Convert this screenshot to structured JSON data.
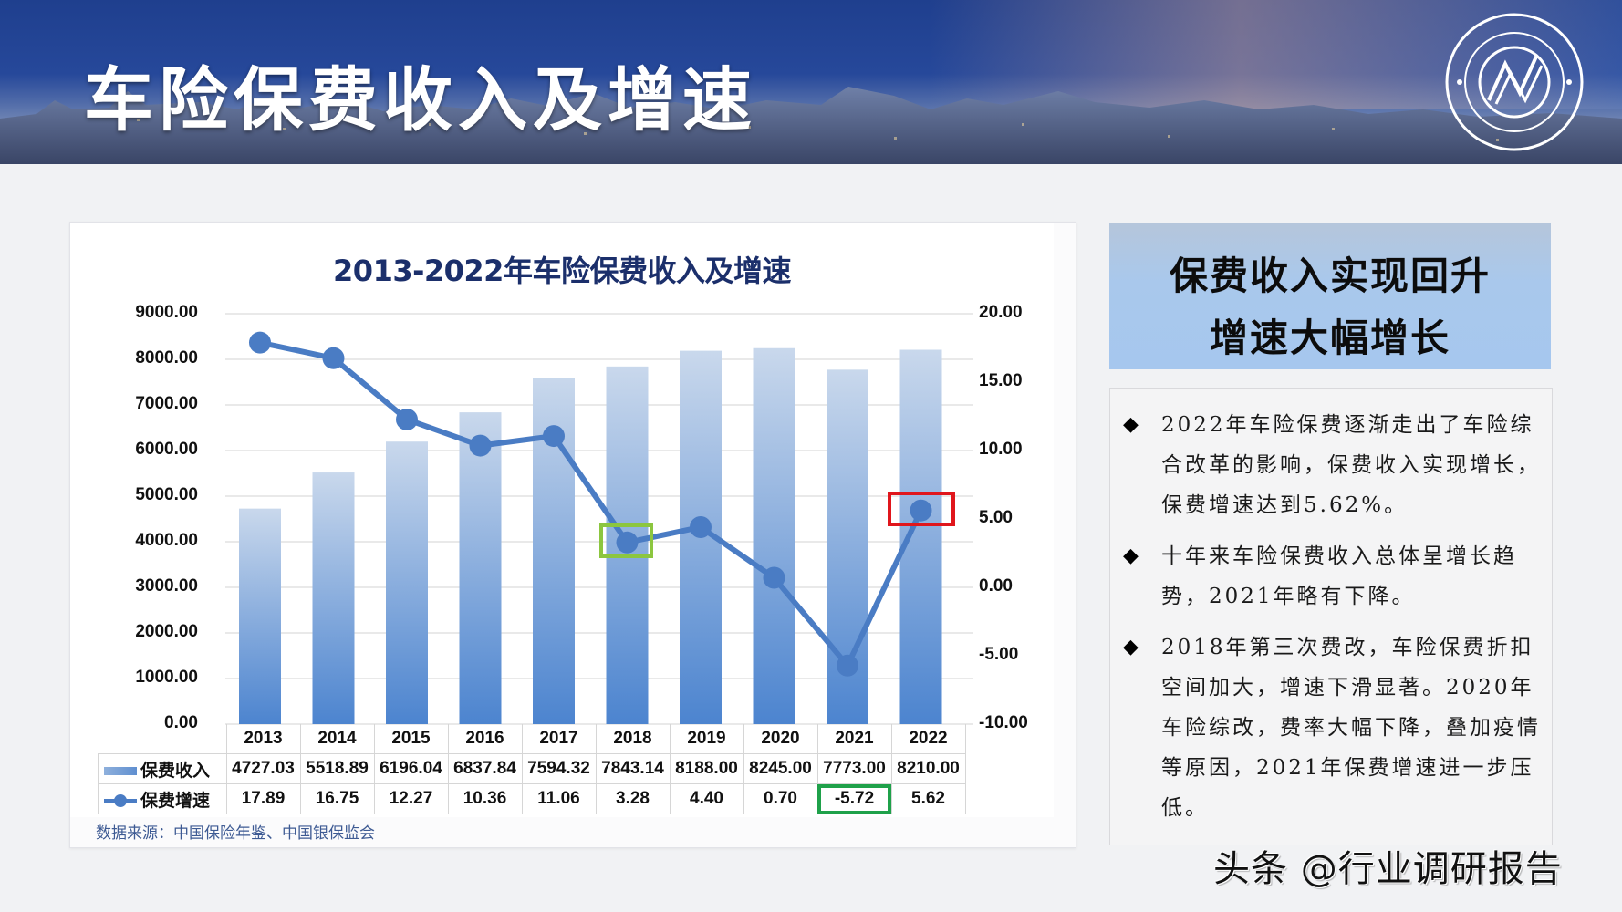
{
  "banner": {
    "title": "车险保费收入及增速",
    "logo": "research-center-seal-logo"
  },
  "chart_data": {
    "type": "bar",
    "combo": "bar+line (dual axis)",
    "title": "2013-2022年车险保费收入及增速",
    "categories": [
      "2013",
      "2014",
      "2015",
      "2016",
      "2017",
      "2018",
      "2019",
      "2020",
      "2021",
      "2022"
    ],
    "series": [
      {
        "name": "保费收入",
        "type": "bar",
        "axis": "left",
        "values": [
          4727.03,
          5518.89,
          6196.04,
          6837.84,
          7594.32,
          7843.14,
          8188.0,
          8245.0,
          7773.0,
          8210.0
        ],
        "labels": [
          "4727.03",
          "5518.89",
          "6196.04",
          "6837.84",
          "7594.32",
          "7843.14",
          "8188.00",
          "8245.00",
          "7773.00",
          "8210.00"
        ]
      },
      {
        "name": "保费增速",
        "type": "line",
        "axis": "right",
        "values": [
          17.89,
          16.75,
          12.27,
          10.36,
          11.06,
          3.28,
          4.4,
          0.7,
          -5.72,
          5.62
        ],
        "labels": [
          "17.89",
          "16.75",
          "12.27",
          "10.36",
          "11.06",
          "3.28",
          "4.40",
          "0.70",
          "-5.72",
          "5.62"
        ]
      }
    ],
    "left_axis": {
      "ylim": [
        0,
        9000
      ],
      "ticks": [
        "9000.00",
        "8000.00",
        "7000.00",
        "6000.00",
        "5000.00",
        "4000.00",
        "3000.00",
        "2000.00",
        "1000.00",
        "0.00"
      ]
    },
    "right_axis": {
      "ylim": [
        -10,
        20
      ],
      "ticks": [
        "20.00",
        "15.00",
        "10.00",
        "5.00",
        "0.00",
        "-5.00",
        "-10.00"
      ]
    },
    "grid": true,
    "legend_position": "data-table",
    "annotations": [
      {
        "type": "box",
        "color": "#8cc63f",
        "target": "2018 growth point"
      },
      {
        "type": "box",
        "color": "#e0161c",
        "target": "2022 growth point"
      },
      {
        "type": "box",
        "color": "#1fa14a",
        "target": "2021 growth table cell"
      }
    ],
    "colors": {
      "bar_top": "#c6d5ea",
      "bar_bottom": "#4f86cf",
      "line": "#4a7cc4"
    }
  },
  "source_note": "数据来源：中国保险年鉴、中国银保监会",
  "headline": {
    "line1": "保费收入实现回升",
    "line2": "增速大幅增长"
  },
  "bullets": [
    {
      "marker": "◆",
      "text": "2022年车险保费逐渐走出了车险综合改革的影响，保费收入实现增长，保费增速达到5.62%。"
    },
    {
      "marker": "◆",
      "text": "十年来车险保费收入总体呈增长趋势，2021年略有下降。"
    },
    {
      "marker": "◆",
      "text": "2018年第三次费改，车险保费折扣空间加大，增速下滑显著。2020年车险综改，费率大幅下降，叠加疫情等原因，2021年保费增速进一步压低。"
    }
  ],
  "watermark": "头条 @行业调研报告"
}
